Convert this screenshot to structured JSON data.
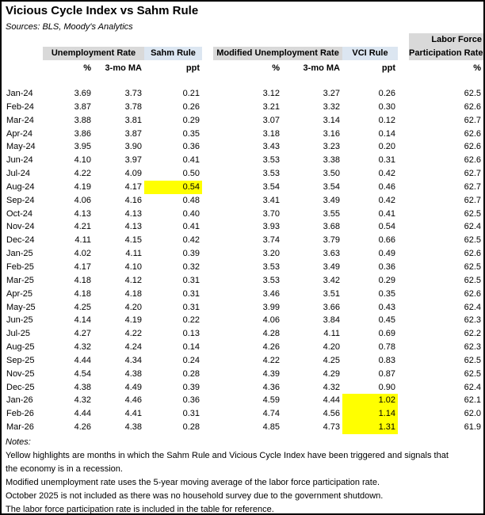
{
  "title": "Vicious Cycle Index vs Sahm Rule",
  "sources": "Sources: BLS, Moody's Analytics",
  "colors": {
    "header_gray": "#D9D9D9",
    "header_blue": "#DCE6F1",
    "highlight_yellow": "#FFFF00",
    "text": "#000000",
    "background": "#FFFFFF"
  },
  "table": {
    "groups": {
      "unemployment": "Unemployment Rate",
      "sahm": "Sahm Rule",
      "modified": "Modified Unemployment Rate",
      "vci": "VCI Rule",
      "lfpr_line1": "Labor Force",
      "lfpr_line2": "Participation Rate"
    },
    "subheaders": [
      "%",
      "3-mo MA",
      "ppt",
      "%",
      "3-mo MA",
      "ppt",
      "%"
    ],
    "col_keys": [
      "month",
      "ur",
      "ur_ma",
      "sahm",
      "mur",
      "mur_ma",
      "vci",
      "lfpr"
    ],
    "rows": [
      {
        "month": "Jan-24",
        "ur": "3.69",
        "ur_ma": "3.73",
        "sahm": "0.21",
        "mur": "3.12",
        "mur_ma": "3.27",
        "vci": "0.26",
        "lfpr": "62.5"
      },
      {
        "month": "Feb-24",
        "ur": "3.87",
        "ur_ma": "3.78",
        "sahm": "0.26",
        "mur": "3.21",
        "mur_ma": "3.32",
        "vci": "0.30",
        "lfpr": "62.6"
      },
      {
        "month": "Mar-24",
        "ur": "3.88",
        "ur_ma": "3.81",
        "sahm": "0.29",
        "mur": "3.07",
        "mur_ma": "3.14",
        "vci": "0.12",
        "lfpr": "62.7"
      },
      {
        "month": "Apr-24",
        "ur": "3.86",
        "ur_ma": "3.87",
        "sahm": "0.35",
        "mur": "3.18",
        "mur_ma": "3.16",
        "vci": "0.14",
        "lfpr": "62.6"
      },
      {
        "month": "May-24",
        "ur": "3.95",
        "ur_ma": "3.90",
        "sahm": "0.36",
        "mur": "3.43",
        "mur_ma": "3.23",
        "vci": "0.20",
        "lfpr": "62.6"
      },
      {
        "month": "Jun-24",
        "ur": "4.10",
        "ur_ma": "3.97",
        "sahm": "0.41",
        "mur": "3.53",
        "mur_ma": "3.38",
        "vci": "0.31",
        "lfpr": "62.6"
      },
      {
        "month": "Jul-24",
        "ur": "4.22",
        "ur_ma": "4.09",
        "sahm": "0.50",
        "mur": "3.53",
        "mur_ma": "3.50",
        "vci": "0.42",
        "lfpr": "62.7"
      },
      {
        "month": "Aug-24",
        "ur": "4.19",
        "ur_ma": "4.17",
        "sahm": "0.54",
        "sahm_highlight": true,
        "mur": "3.54",
        "mur_ma": "3.54",
        "vci": "0.46",
        "lfpr": "62.7"
      },
      {
        "month": "Sep-24",
        "ur": "4.06",
        "ur_ma": "4.16",
        "sahm": "0.48",
        "mur": "3.41",
        "mur_ma": "3.49",
        "vci": "0.42",
        "lfpr": "62.7"
      },
      {
        "month": "Oct-24",
        "ur": "4.13",
        "ur_ma": "4.13",
        "sahm": "0.40",
        "mur": "3.70",
        "mur_ma": "3.55",
        "vci": "0.41",
        "lfpr": "62.5"
      },
      {
        "month": "Nov-24",
        "ur": "4.21",
        "ur_ma": "4.13",
        "sahm": "0.41",
        "mur": "3.93",
        "mur_ma": "3.68",
        "vci": "0.54",
        "lfpr": "62.4"
      },
      {
        "month": "Dec-24",
        "ur": "4.11",
        "ur_ma": "4.15",
        "sahm": "0.42",
        "mur": "3.74",
        "mur_ma": "3.79",
        "vci": "0.66",
        "lfpr": "62.5"
      },
      {
        "month": "Jan-25",
        "ur": "4.02",
        "ur_ma": "4.11",
        "sahm": "0.39",
        "mur": "3.20",
        "mur_ma": "3.63",
        "vci": "0.49",
        "lfpr": "62.6"
      },
      {
        "month": "Feb-25",
        "ur": "4.17",
        "ur_ma": "4.10",
        "sahm": "0.32",
        "mur": "3.53",
        "mur_ma": "3.49",
        "vci": "0.36",
        "lfpr": "62.5"
      },
      {
        "month": "Mar-25",
        "ur": "4.18",
        "ur_ma": "4.12",
        "sahm": "0.31",
        "mur": "3.53",
        "mur_ma": "3.42",
        "vci": "0.29",
        "lfpr": "62.5"
      },
      {
        "month": "Apr-25",
        "ur": "4.18",
        "ur_ma": "4.18",
        "sahm": "0.31",
        "mur": "3.46",
        "mur_ma": "3.51",
        "vci": "0.35",
        "lfpr": "62.6"
      },
      {
        "month": "May-25",
        "ur": "4.25",
        "ur_ma": "4.20",
        "sahm": "0.31",
        "mur": "3.99",
        "mur_ma": "3.66",
        "vci": "0.43",
        "lfpr": "62.4"
      },
      {
        "month": "Jun-25",
        "ur": "4.14",
        "ur_ma": "4.19",
        "sahm": "0.22",
        "mur": "4.06",
        "mur_ma": "3.84",
        "vci": "0.45",
        "lfpr": "62.3"
      },
      {
        "month": "Jul-25",
        "ur": "4.27",
        "ur_ma": "4.22",
        "sahm": "0.13",
        "mur": "4.28",
        "mur_ma": "4.11",
        "vci": "0.69",
        "lfpr": "62.2"
      },
      {
        "month": "Aug-25",
        "ur": "4.32",
        "ur_ma": "4.24",
        "sahm": "0.14",
        "mur": "4.26",
        "mur_ma": "4.20",
        "vci": "0.78",
        "lfpr": "62.3"
      },
      {
        "month": "Sep-25",
        "ur": "4.44",
        "ur_ma": "4.34",
        "sahm": "0.24",
        "mur": "4.22",
        "mur_ma": "4.25",
        "vci": "0.83",
        "lfpr": "62.5"
      },
      {
        "month": "Nov-25",
        "ur": "4.54",
        "ur_ma": "4.38",
        "sahm": "0.28",
        "mur": "4.39",
        "mur_ma": "4.29",
        "vci": "0.87",
        "lfpr": "62.5"
      },
      {
        "month": "Dec-25",
        "ur": "4.38",
        "ur_ma": "4.49",
        "sahm": "0.39",
        "mur": "4.36",
        "mur_ma": "4.32",
        "vci": "0.90",
        "lfpr": "62.4"
      },
      {
        "month": "Jan-26",
        "ur": "4.32",
        "ur_ma": "4.46",
        "sahm": "0.36",
        "mur": "4.59",
        "mur_ma": "4.44",
        "vci": "1.02",
        "vci_highlight": true,
        "lfpr": "62.1"
      },
      {
        "month": "Feb-26",
        "ur": "4.44",
        "ur_ma": "4.41",
        "sahm": "0.31",
        "mur": "4.74",
        "mur_ma": "4.56",
        "vci": "1.14",
        "vci_highlight": true,
        "lfpr": "62.0"
      },
      {
        "month": "Mar-26",
        "ur": "4.26",
        "ur_ma": "4.38",
        "sahm": "0.28",
        "mur": "4.85",
        "mur_ma": "4.73",
        "vci": "1.31",
        "vci_highlight": true,
        "lfpr": "61.9"
      }
    ]
  },
  "notes": {
    "label": "Notes:",
    "lines": [
      "Yellow highlights are months in which the Sahm Rule and Vicious Cycle Index have been triggered and signals that",
      "the economy is in a recession.",
      "Modified unemployment rate uses the 5-year moving average of the labor force participation rate.",
      "October 2025 is not included as there was no household survey due to the government shutdown.",
      "The labor force participation rate is included in the table for reference."
    ]
  }
}
